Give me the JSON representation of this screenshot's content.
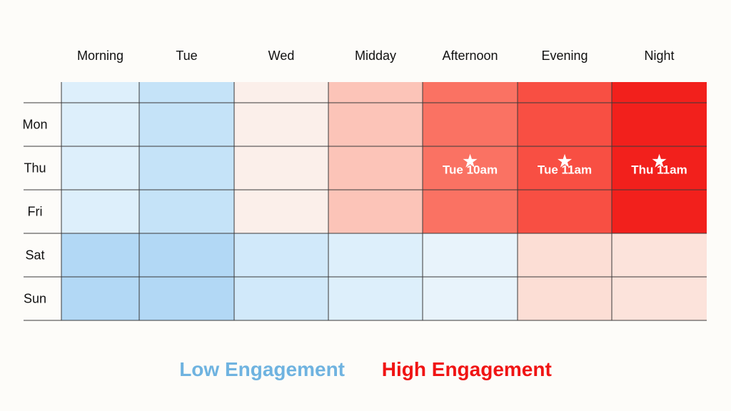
{
  "chart_data": {
    "type": "heatmap",
    "columns": [
      "Morning",
      "Tue",
      "Wed",
      "Midday",
      "Afternoon",
      "Evening",
      "Night"
    ],
    "rows": [
      "",
      "Mon",
      "Thu",
      "Fri",
      "Sat",
      "Sun"
    ],
    "values": [
      [
        0.25,
        0.15,
        0.45,
        0.62,
        0.8,
        0.88,
        1.0
      ],
      [
        0.25,
        0.15,
        0.45,
        0.62,
        0.8,
        0.88,
        1.0
      ],
      [
        0.25,
        0.15,
        0.45,
        0.62,
        0.8,
        0.88,
        1.0
      ],
      [
        0.25,
        0.15,
        0.45,
        0.62,
        0.8,
        0.88,
        1.0
      ],
      [
        0.05,
        0.05,
        0.2,
        0.25,
        0.3,
        0.55,
        0.52
      ],
      [
        0.05,
        0.05,
        0.2,
        0.25,
        0.3,
        0.55,
        0.52
      ]
    ],
    "annotations": [
      {
        "row": 2,
        "col": 4,
        "label": "Tue 10am",
        "symbol": "★"
      },
      {
        "row": 2,
        "col": 5,
        "label": "Tue 11am",
        "symbol": "★"
      },
      {
        "row": 2,
        "col": 6,
        "label": "Thu 11am",
        "symbol": "★"
      }
    ],
    "legend": {
      "low_label": "Low Engagement",
      "high_label": "High Engagement",
      "low_color": "#6fb3e0",
      "high_color": "#f01414",
      "placement": "bottom-center"
    },
    "colors": {
      "cell_palette": [
        "#a9d3f3",
        "#c3e2f8",
        "#e6f3fc",
        "#fbf3ee",
        "#fcdad0",
        "#fc9a88",
        "#f9584b",
        "#f2201c"
      ]
    }
  }
}
